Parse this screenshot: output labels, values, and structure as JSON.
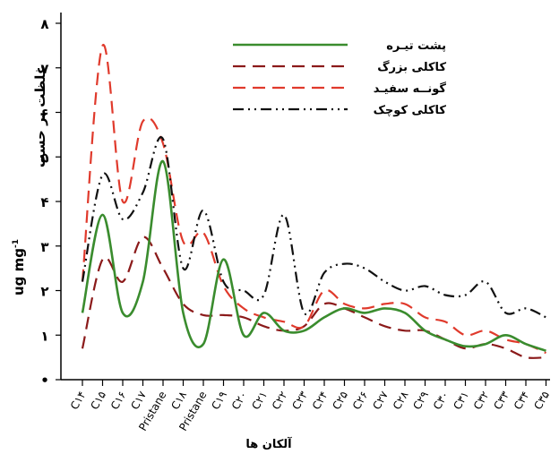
{
  "chart_data": {
    "type": "line",
    "ylabel_prefix": "ug mg",
    "ylabel_superscript": "-1",
    "ylabel_persian": "غلظت بر حسب",
    "xlabel": "آلکان ها",
    "yticks": [
      "•",
      "۱",
      "۲",
      "۳",
      "۴",
      "۵",
      "۶",
      "۷",
      "۸"
    ],
    "ylim": [
      0,
      8
    ],
    "categories": [
      "C۱۴",
      "C۱۵",
      "C۱۶",
      "C۱۷",
      "Pristane",
      "C۱۸",
      "Pristane",
      "C۱۹",
      "C۲۰",
      "C۲۱",
      "C۲۲",
      "C۲۳",
      "C۲۴",
      "C۲۵",
      "C۲۶",
      "C۲۷",
      "C۲۸",
      "C۲۹",
      "C۳۰",
      "C۳۱",
      "C۳۲",
      "C۳۳",
      "C۳۴",
      "C۳۵"
    ],
    "legend_position": "top-right",
    "series": [
      {
        "name": "پشت تیـره",
        "color": "#3a8c2e",
        "dash": "solid",
        "values": [
          1.5,
          3.7,
          1.5,
          2.2,
          4.9,
          1.5,
          0.8,
          2.7,
          1.0,
          1.5,
          1.1,
          1.1,
          1.4,
          1.6,
          1.5,
          1.6,
          1.5,
          1.1,
          0.9,
          0.75,
          0.8,
          1.0,
          0.8,
          0.65
        ]
      },
      {
        "name": "کاکلی بزرگ",
        "color": "#8b1a1a",
        "dash": "long",
        "values": [
          0.7,
          2.7,
          2.2,
          3.2,
          2.5,
          1.7,
          1.45,
          1.45,
          1.4,
          1.2,
          1.1,
          1.2,
          1.7,
          1.6,
          1.4,
          1.2,
          1.1,
          1.1,
          0.9,
          0.7,
          0.8,
          0.7,
          0.5,
          0.5
        ]
      },
      {
        "name": "گونــه سفیـد",
        "color": "#e03a2c",
        "dash": "long",
        "values": [
          2.2,
          7.5,
          4.0,
          5.8,
          5.3,
          3.1,
          3.3,
          2.1,
          1.6,
          1.4,
          1.3,
          1.2,
          2.0,
          1.7,
          1.6,
          1.7,
          1.7,
          1.4,
          1.3,
          1.0,
          1.1,
          0.9,
          0.8,
          0.6
        ]
      },
      {
        "name": "کاکلی کوچک",
        "color": "#111111",
        "dash": "dashdotdot",
        "values": [
          2.2,
          4.6,
          3.6,
          4.2,
          5.4,
          2.5,
          3.8,
          2.2,
          2.0,
          1.9,
          3.7,
          1.5,
          2.4,
          2.6,
          2.5,
          2.2,
          2.0,
          2.1,
          1.9,
          1.9,
          2.2,
          1.5,
          1.6,
          1.4
        ]
      }
    ]
  }
}
